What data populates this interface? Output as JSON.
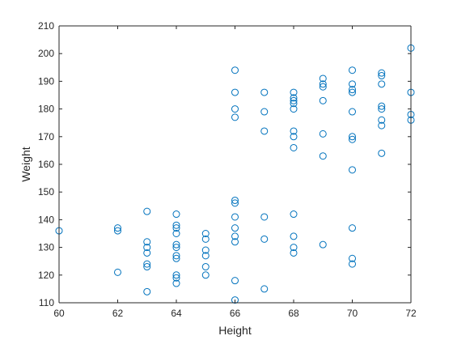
{
  "chart_data": {
    "type": "scatter",
    "title": "",
    "xlabel": "Height",
    "ylabel": "Weight",
    "xlim": [
      60,
      72
    ],
    "ylim": [
      110,
      210
    ],
    "xticks": [
      "60",
      "62",
      "64",
      "66",
      "68",
      "70",
      "72"
    ],
    "yticks": [
      "110",
      "120",
      "130",
      "140",
      "150",
      "160",
      "170",
      "180",
      "190",
      "200",
      "210"
    ],
    "grid": false,
    "legend": false,
    "marker": "open-circle",
    "marker_color": "#0072BD",
    "axis_color": "#262626",
    "points": [
      [
        60,
        136
      ],
      [
        62,
        137
      ],
      [
        62,
        136
      ],
      [
        62,
        121
      ],
      [
        63,
        143
      ],
      [
        63,
        132
      ],
      [
        63,
        130
      ],
      [
        63,
        128
      ],
      [
        63,
        124
      ],
      [
        63,
        123
      ],
      [
        63,
        114
      ],
      [
        64,
        142
      ],
      [
        64,
        138
      ],
      [
        64,
        137
      ],
      [
        64,
        135
      ],
      [
        64,
        131
      ],
      [
        64,
        130
      ],
      [
        64,
        127
      ],
      [
        64,
        126
      ],
      [
        64,
        120
      ],
      [
        64,
        119
      ],
      [
        64,
        117
      ],
      [
        65,
        135
      ],
      [
        65,
        133
      ],
      [
        65,
        129
      ],
      [
        65,
        127
      ],
      [
        65,
        123
      ],
      [
        65,
        120
      ],
      [
        66,
        194
      ],
      [
        66,
        186
      ],
      [
        66,
        180
      ],
      [
        66,
        177
      ],
      [
        66,
        147
      ],
      [
        66,
        146
      ],
      [
        66,
        141
      ],
      [
        66,
        137
      ],
      [
        66,
        134
      ],
      [
        66,
        132
      ],
      [
        66,
        118
      ],
      [
        66,
        111
      ],
      [
        67,
        186
      ],
      [
        67,
        179
      ],
      [
        67,
        172
      ],
      [
        67,
        141
      ],
      [
        67,
        133
      ],
      [
        67,
        115
      ],
      [
        68,
        186
      ],
      [
        68,
        184
      ],
      [
        68,
        183
      ],
      [
        68,
        182
      ],
      [
        68,
        180
      ],
      [
        68,
        172
      ],
      [
        68,
        170
      ],
      [
        68,
        166
      ],
      [
        68,
        142
      ],
      [
        68,
        134
      ],
      [
        68,
        130
      ],
      [
        68,
        128
      ],
      [
        69,
        191
      ],
      [
        69,
        189
      ],
      [
        69,
        188
      ],
      [
        69,
        183
      ],
      [
        69,
        171
      ],
      [
        69,
        163
      ],
      [
        69,
        131
      ],
      [
        70,
        194
      ],
      [
        70,
        189
      ],
      [
        70,
        187
      ],
      [
        70,
        186
      ],
      [
        70,
        179
      ],
      [
        70,
        170
      ],
      [
        70,
        169
      ],
      [
        70,
        158
      ],
      [
        70,
        137
      ],
      [
        70,
        126
      ],
      [
        70,
        124
      ],
      [
        71,
        193
      ],
      [
        71,
        192
      ],
      [
        71,
        189
      ],
      [
        71,
        181
      ],
      [
        71,
        180
      ],
      [
        71,
        176
      ],
      [
        71,
        174
      ],
      [
        71,
        164
      ],
      [
        72,
        202
      ],
      [
        72,
        186
      ],
      [
        72,
        178
      ],
      [
        72,
        176
      ]
    ]
  }
}
